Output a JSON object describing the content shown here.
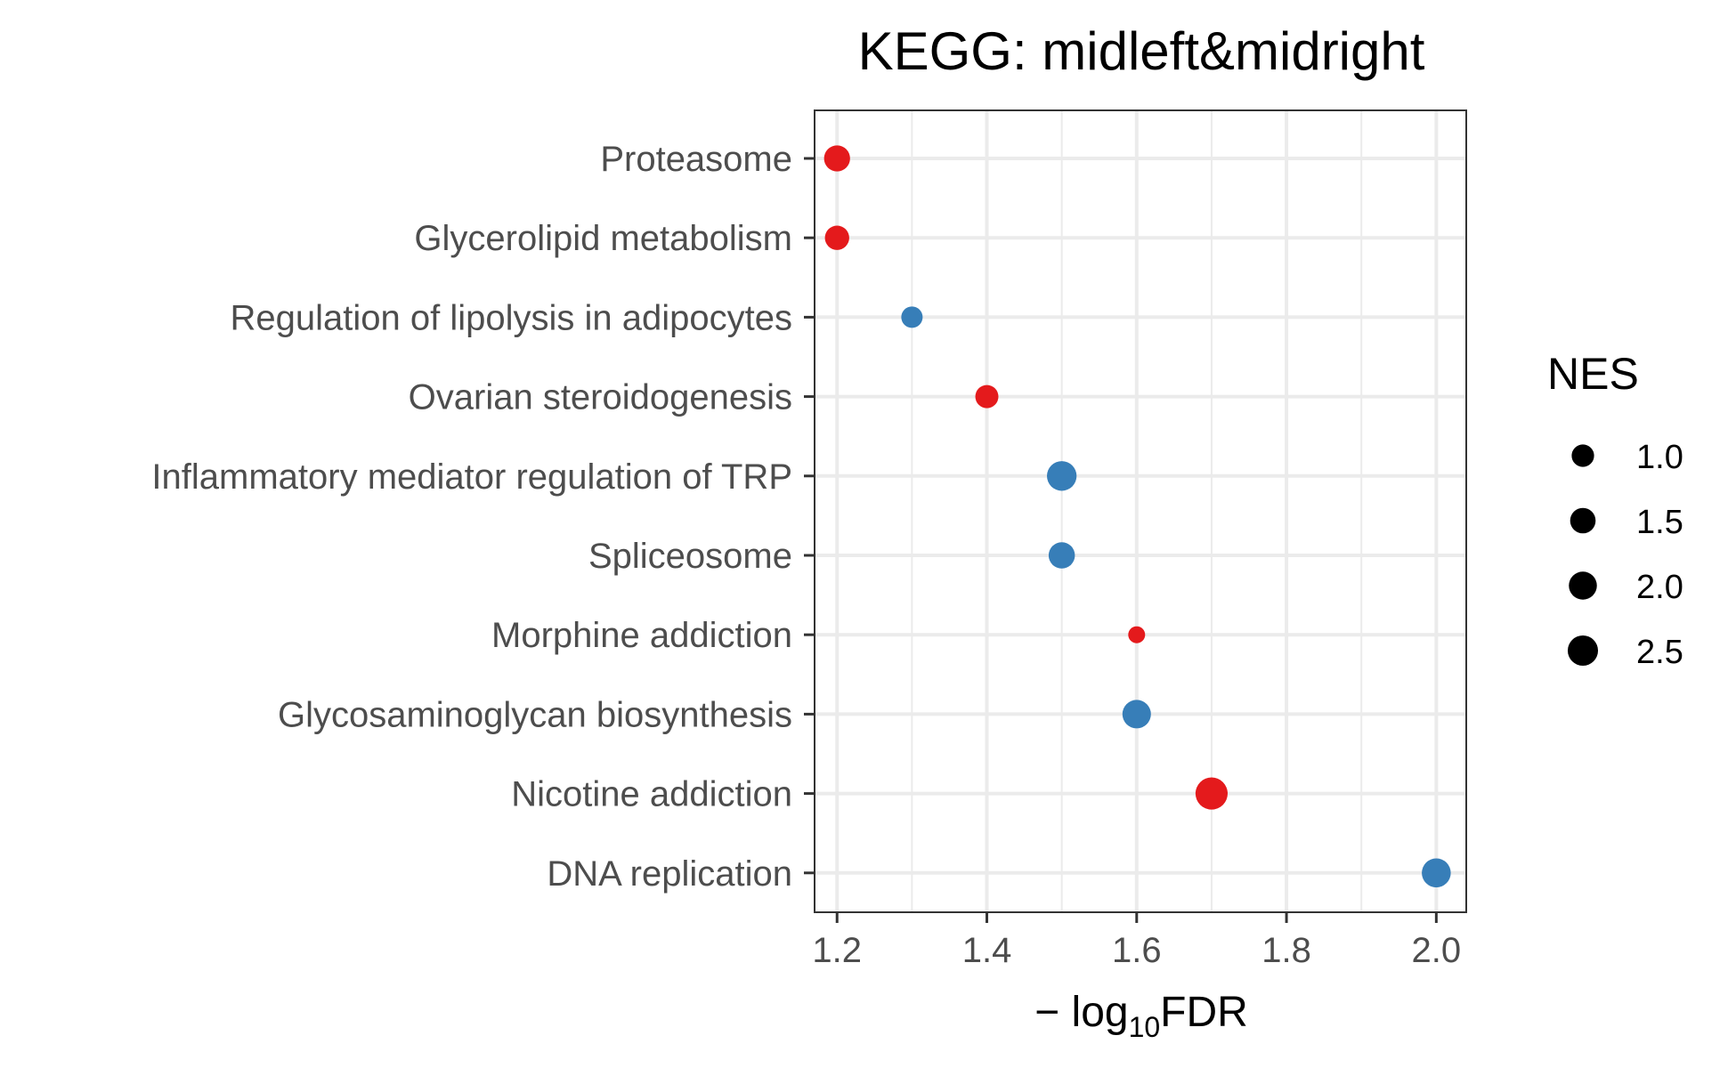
{
  "chart_data": {
    "type": "scatter",
    "title": "KEGG: midleft&midright",
    "xlabel": {
      "prefix": "− log",
      "subscript": "10",
      "suffix": "FDR"
    },
    "xlim": [
      1.17,
      2.04
    ],
    "x_ticks": [
      {
        "value": 1.2,
        "label": "1.2"
      },
      {
        "value": 1.4,
        "label": "1.4"
      },
      {
        "value": 1.6,
        "label": "1.6"
      },
      {
        "value": 1.8,
        "label": "1.8"
      },
      {
        "value": 2.0,
        "label": "2.0"
      }
    ],
    "grid": true,
    "categories": [
      "Proteasome",
      "Glycerolipid metabolism",
      "Regulation of lipolysis in adipocytes",
      "Ovarian steroidogenesis",
      "Inflammatory mediator regulation of TRP ",
      "Spliceosome",
      "Morphine addiction",
      "Glycosaminoglycan biosynthesis",
      "Nicotine addiction",
      "DNA replication"
    ],
    "points": [
      {
        "category": "Proteasome",
        "x": 1.2,
        "nes": 1.6,
        "color": "#e41a1c"
      },
      {
        "category": "Glycerolipid metabolism",
        "x": 1.2,
        "nes": 1.3,
        "color": "#e41a1c"
      },
      {
        "category": "Regulation of lipolysis in adipocytes",
        "x": 1.3,
        "nes": 0.85,
        "color": "#377eb8"
      },
      {
        "category": "Ovarian steroidogenesis",
        "x": 1.4,
        "nes": 1.1,
        "color": "#e41a1c"
      },
      {
        "category": "Inflammatory mediator regulation of TRP ",
        "x": 1.5,
        "nes": 2.35,
        "color": "#377eb8"
      },
      {
        "category": "Spliceosome",
        "x": 1.5,
        "nes": 1.65,
        "color": "#377eb8"
      },
      {
        "category": "Morphine addiction",
        "x": 1.6,
        "nes": 0.35,
        "color": "#e41a1c"
      },
      {
        "category": "Glycosaminoglycan biosynthesis",
        "x": 1.6,
        "nes": 2.1,
        "color": "#377eb8"
      },
      {
        "category": "Nicotine addiction",
        "x": 1.7,
        "nes": 2.95,
        "color": "#e41a1c"
      },
      {
        "category": "DNA replication",
        "x": 2.0,
        "nes": 2.2,
        "color": "#377eb8"
      }
    ],
    "size_legend": {
      "title": "NES",
      "position": "right",
      "entries": [
        {
          "nes": 1.0,
          "label": "1.0"
        },
        {
          "nes": 1.5,
          "label": "1.5"
        },
        {
          "nes": 2.0,
          "label": "2.0"
        },
        {
          "nes": 2.5,
          "label": "2.5"
        }
      ]
    },
    "colors": {
      "up": "#e41a1c",
      "down": "#377eb8",
      "grid": "#ebebeb",
      "panel_border": "#333333",
      "legend_point": "#000000"
    }
  }
}
